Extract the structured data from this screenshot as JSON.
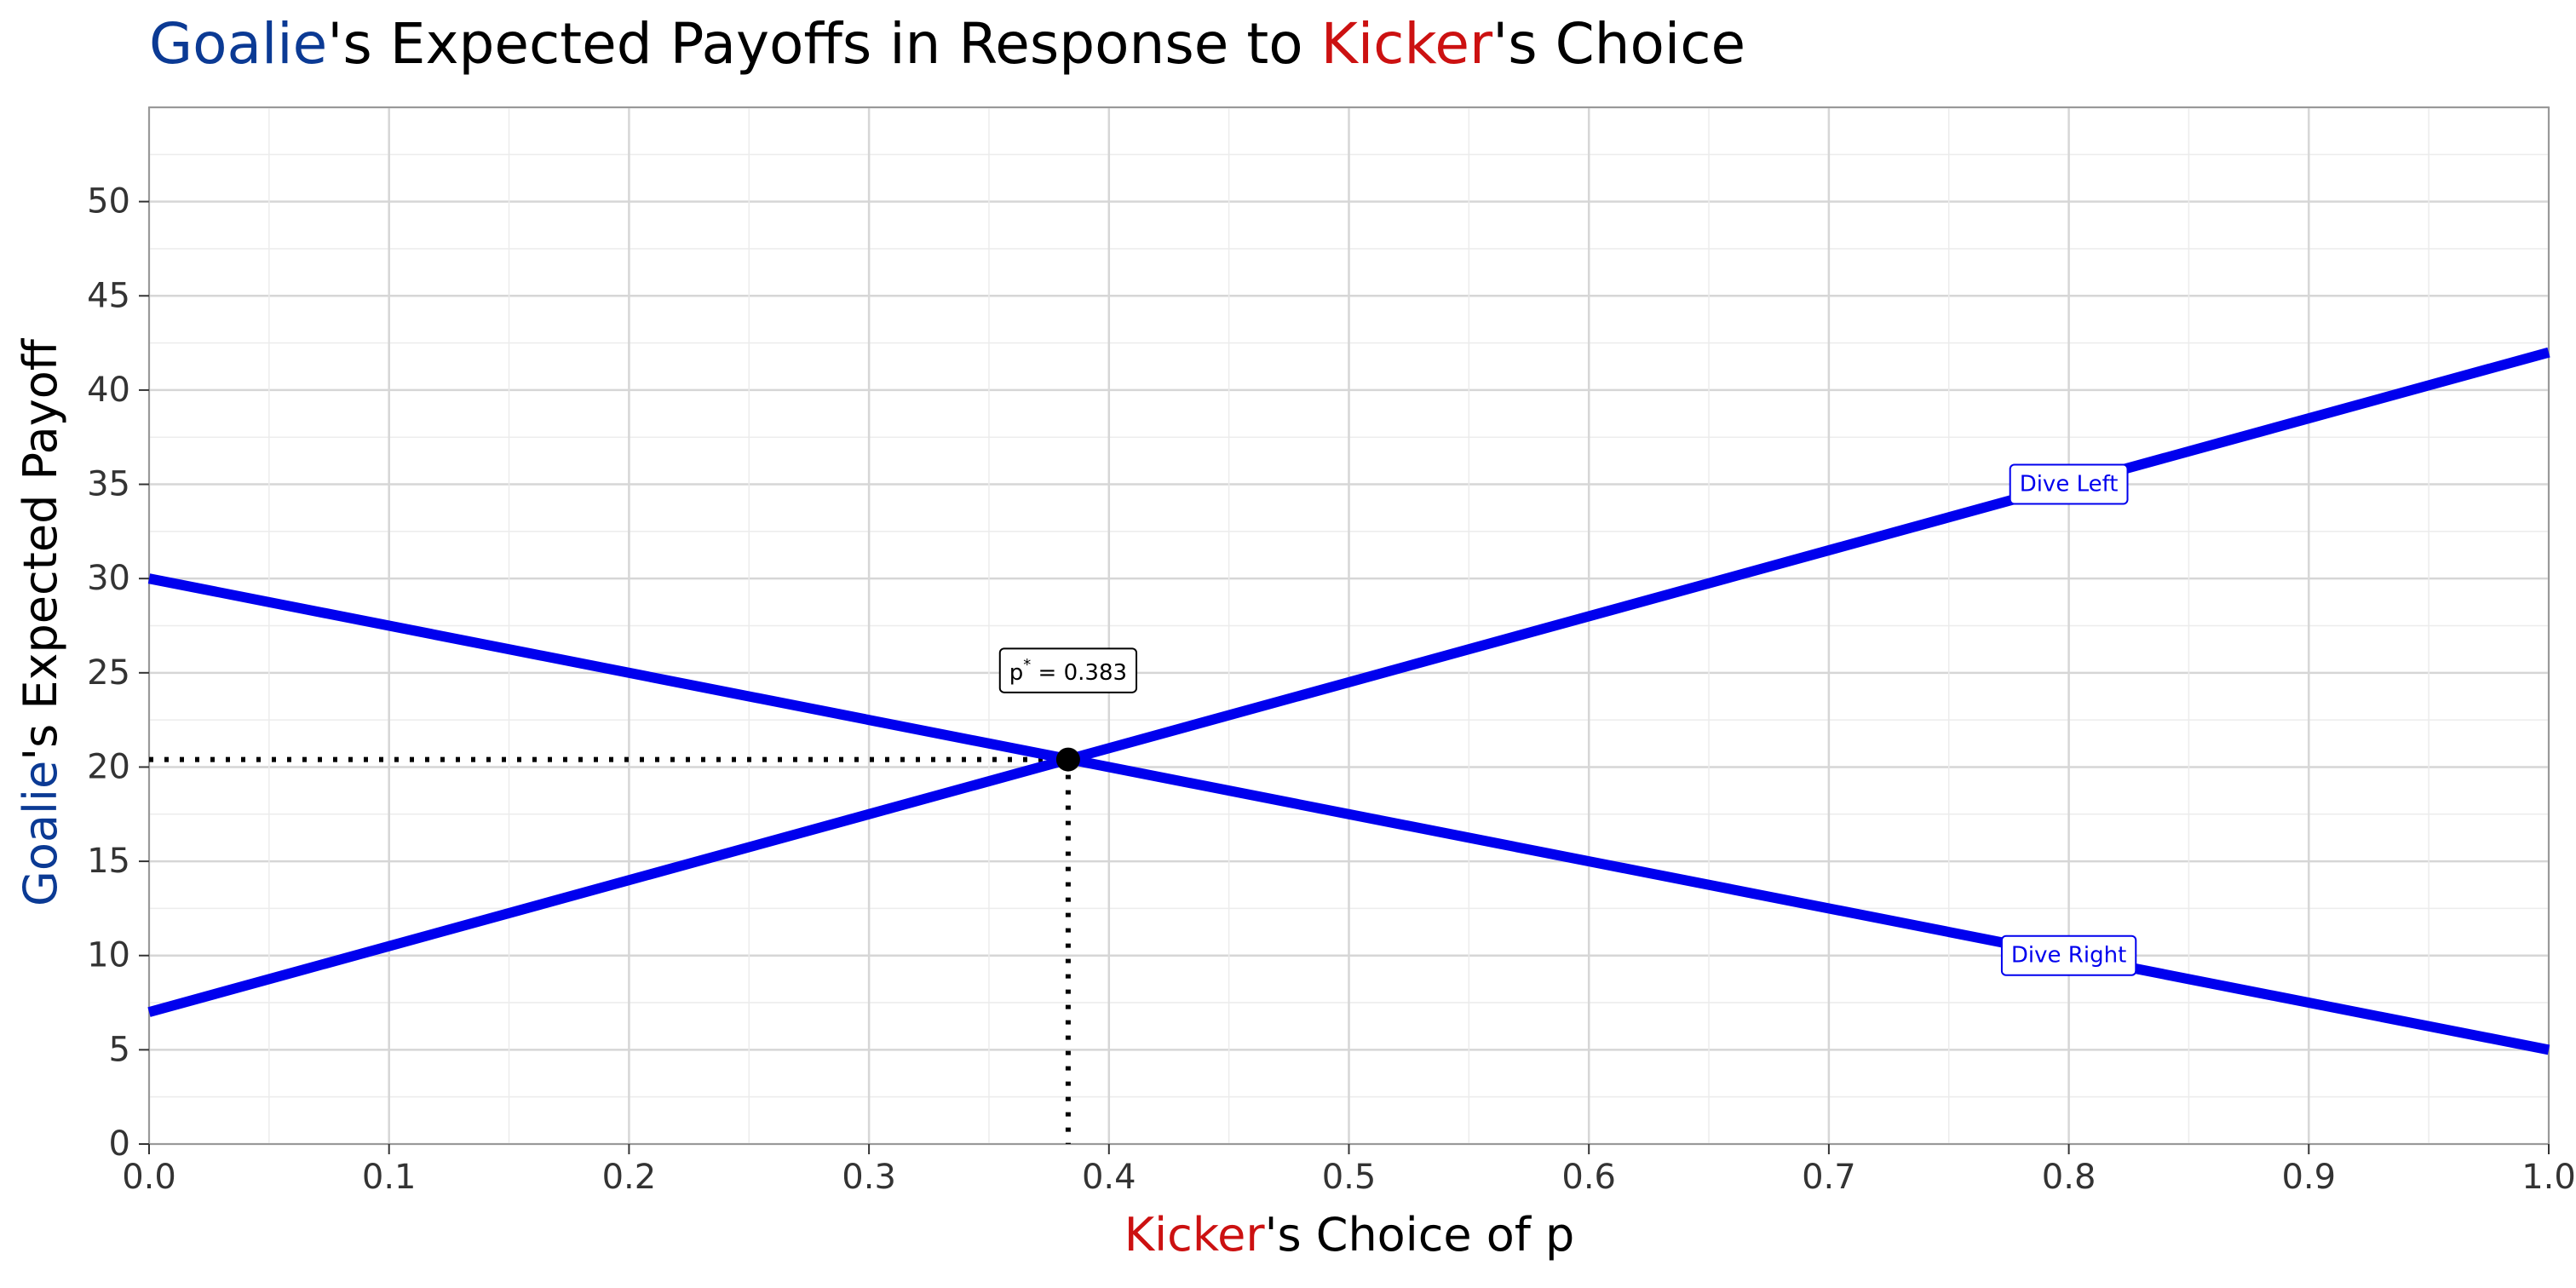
{
  "chart_data": {
    "type": "line",
    "title": {
      "parts": [
        {
          "text": "Goalie",
          "color": "#0b3a94"
        },
        {
          "text": "'s Expected Payoffs in Response to ",
          "color": "#000000"
        },
        {
          "text": "Kicker",
          "color": "#cc1111"
        },
        {
          "text": "'s Choice",
          "color": "#000000"
        }
      ]
    },
    "xlabel": {
      "parts": [
        {
          "text": "Kicker",
          "color": "#cc1111"
        },
        {
          "text": "'s Choice of p",
          "color": "#000000"
        }
      ]
    },
    "ylabel": {
      "parts": [
        {
          "text": "Goalie",
          "color": "#0b3a94"
        },
        {
          "text": "'s Expected Payoff",
          "color": "#000000"
        }
      ]
    },
    "xlim": [
      0,
      1
    ],
    "ylim": [
      0,
      55
    ],
    "x_ticks": [
      0.0,
      0.1,
      0.2,
      0.3,
      0.4,
      0.5,
      0.6,
      0.7,
      0.8,
      0.9,
      1.0
    ],
    "x_tick_labels": [
      "0.0",
      "0.1",
      "0.2",
      "0.3",
      "0.4",
      "0.5",
      "0.6",
      "0.7",
      "0.8",
      "0.9",
      "1.0"
    ],
    "y_ticks": [
      0,
      5,
      10,
      15,
      20,
      25,
      30,
      35,
      40,
      45,
      50
    ],
    "y_tick_labels": [
      "0",
      "5",
      "10",
      "15",
      "20",
      "25",
      "30",
      "35",
      "40",
      "45",
      "50"
    ],
    "grid": true,
    "series": [
      {
        "name": "Dive Left",
        "x": [
          0,
          1
        ],
        "y": [
          7,
          42
        ],
        "color": "#0000ee",
        "label_at_x": 0.8
      },
      {
        "name": "Dive Right",
        "x": [
          0,
          1
        ],
        "y": [
          30,
          5
        ],
        "color": "#0000ee",
        "label_at_x": 0.8
      }
    ],
    "equilibrium": {
      "x": 0.383,
      "y": 20.4,
      "label_main": "p",
      "label_sup": "*",
      "label_rest": " = 0.383",
      "label_y": 25
    }
  }
}
